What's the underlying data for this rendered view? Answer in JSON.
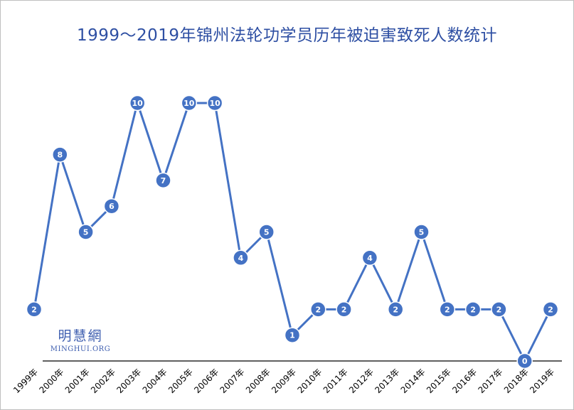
{
  "chart_data": {
    "type": "line",
    "title": "1999～2019年锦州法轮功学员历年被迫害致死人数统计",
    "categories": [
      "1999年",
      "2000年",
      "2001年",
      "2002年",
      "2003年",
      "2004年",
      "2005年",
      "2006年",
      "2007年",
      "2008年",
      "2009年",
      "2010年",
      "2011年",
      "2012年",
      "2013年",
      "2014年",
      "2015年",
      "2016年",
      "2017年",
      "2018年",
      "2019年"
    ],
    "values": [
      2,
      8,
      5,
      6,
      10,
      7,
      10,
      10,
      4,
      5,
      1,
      2,
      2,
      4,
      2,
      5,
      2,
      2,
      2,
      0,
      2
    ],
    "ylim": [
      0,
      10
    ],
    "grid": false,
    "legend": "none",
    "data_labels": true,
    "line_color": "#4472c4",
    "marker_color": "#4472c4"
  },
  "watermark": {
    "name_cn": "明慧網",
    "name_en": "MINGHUI.ORG"
  }
}
